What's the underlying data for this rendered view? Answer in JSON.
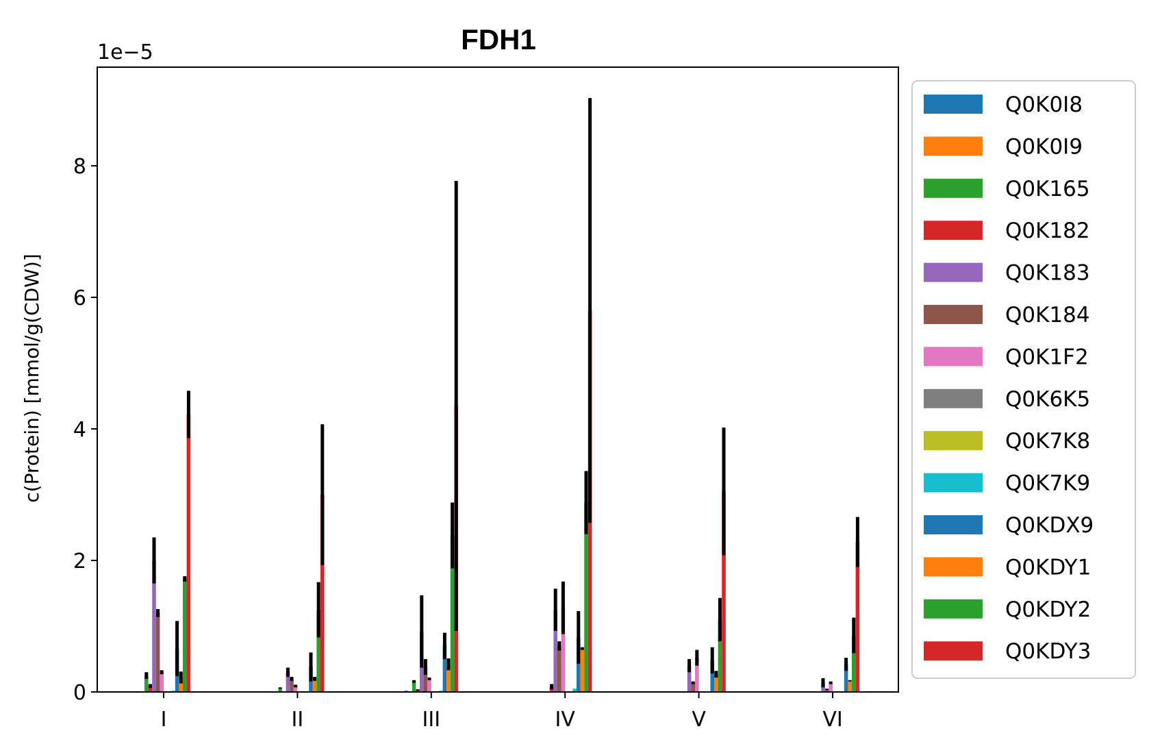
{
  "chart_data": {
    "type": "bar",
    "title": "FDH1",
    "xlabel": "",
    "ylabel": "c(Protein) [mmol/g(CDW)]",
    "y_multiplier_label": "1e−5",
    "ylim": [
      0,
      9.5
    ],
    "yticks": [
      0,
      2,
      4,
      6,
      8
    ],
    "grid": false,
    "legend_position": "outside-right",
    "categories": [
      "I",
      "II",
      "III",
      "IV",
      "V",
      "VI"
    ],
    "series": [
      {
        "name": "Q0K0I8",
        "color": "#1f77b4",
        "values": [
          0.0,
          0.0,
          0.02,
          0.0,
          0.0,
          0.0
        ],
        "errors": [
          0.0,
          0.0,
          0.0,
          0.0,
          0.0,
          0.0
        ]
      },
      {
        "name": "Q0K0I9",
        "color": "#ff7f0e",
        "values": [
          0.0,
          0.0,
          0.0,
          0.0,
          0.0,
          0.0
        ],
        "errors": [
          0.0,
          0.0,
          0.0,
          0.0,
          0.0,
          0.0
        ]
      },
      {
        "name": "Q0K165",
        "color": "#2ca02c",
        "values": [
          0.25,
          0.06,
          0.16,
          0.0,
          0.0,
          0.0
        ],
        "errors": [
          0.05,
          0.01,
          0.02,
          0.0,
          0.0,
          0.0
        ]
      },
      {
        "name": "Q0K182",
        "color": "#d62728",
        "values": [
          0.09,
          0.0,
          0.03,
          0.08,
          0.0,
          0.0
        ],
        "errors": [
          0.03,
          0.0,
          0.01,
          0.04,
          0.0,
          0.0
        ]
      },
      {
        "name": "Q0K183",
        "color": "#9467bd",
        "values": [
          2.0,
          0.3,
          0.92,
          1.25,
          0.4,
          0.14
        ],
        "errors": [
          0.35,
          0.07,
          0.55,
          0.32,
          0.1,
          0.07
        ]
      },
      {
        "name": "Q0K184",
        "color": "#8c564b",
        "values": [
          1.2,
          0.2,
          0.38,
          0.7,
          0.14,
          0.04
        ],
        "errors": [
          0.06,
          0.03,
          0.12,
          0.07,
          0.02,
          0.01
        ]
      },
      {
        "name": "Q0K1F2",
        "color": "#e377c2",
        "values": [
          0.3,
          0.09,
          0.2,
          1.28,
          0.52,
          0.14
        ],
        "errors": [
          0.03,
          0.02,
          0.02,
          0.4,
          0.12,
          0.02
        ]
      },
      {
        "name": "Q0K6K5",
        "color": "#7f7f7f",
        "values": [
          0.0,
          0.0,
          0.0,
          0.0,
          0.0,
          0.0
        ],
        "errors": [
          0.0,
          0.0,
          0.0,
          0.0,
          0.0,
          0.0
        ]
      },
      {
        "name": "Q0K7K8",
        "color": "#bcbd22",
        "values": [
          0.0,
          0.0,
          0.0,
          0.0,
          0.0,
          0.0
        ],
        "errors": [
          0.0,
          0.0,
          0.0,
          0.0,
          0.0,
          0.0
        ]
      },
      {
        "name": "Q0K7K9",
        "color": "#17becf",
        "values": [
          0.02,
          0.0,
          0.02,
          0.05,
          0.0,
          0.0
        ],
        "errors": [
          0.0,
          0.0,
          0.0,
          0.0,
          0.0,
          0.0
        ]
      },
      {
        "name": "Q0KDX9",
        "color": "#1f77b4",
        "values": [
          0.66,
          0.38,
          0.7,
          0.83,
          0.48,
          0.42
        ],
        "errors": [
          0.42,
          0.22,
          0.2,
          0.4,
          0.2,
          0.1
        ]
      },
      {
        "name": "Q0KDY1",
        "color": "#ff7f0e",
        "values": [
          0.22,
          0.2,
          0.42,
          0.66,
          0.27,
          0.17
        ],
        "errors": [
          0.09,
          0.03,
          0.09,
          0.02,
          0.05,
          0.01
        ]
      },
      {
        "name": "Q0KDY2",
        "color": "#2ca02c",
        "values": [
          1.72,
          1.25,
          2.38,
          2.88,
          1.1,
          0.86
        ],
        "errors": [
          0.04,
          0.42,
          0.5,
          0.48,
          0.33,
          0.27
        ]
      },
      {
        "name": "Q0KDY3",
        "color": "#d62728",
        "values": [
          4.22,
          3.0,
          4.35,
          5.8,
          3.05,
          2.28
        ],
        "errors": [
          0.36,
          1.07,
          3.42,
          3.23,
          0.97,
          0.38
        ]
      }
    ]
  }
}
